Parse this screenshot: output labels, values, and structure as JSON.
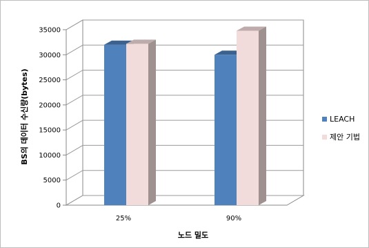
{
  "chart_data": {
    "type": "bar",
    "categories": [
      "25%",
      "90%"
    ],
    "series": [
      {
        "name": "LEACH",
        "values": [
          32000,
          30000
        ],
        "color": "#4f81bd"
      },
      {
        "name": "제안 기법",
        "values": [
          32200,
          34800
        ],
        "color": "#f2dcdb"
      }
    ],
    "xlabel": "노드 밀도",
    "ylabel": "BS의 데이터 수신량(bytes)",
    "ylim": [
      0,
      35000
    ],
    "yticks": [
      0,
      5000,
      10000,
      15000,
      20000,
      25000,
      30000,
      35000
    ],
    "grid": true,
    "legend_position": "right",
    "style": "3d"
  }
}
